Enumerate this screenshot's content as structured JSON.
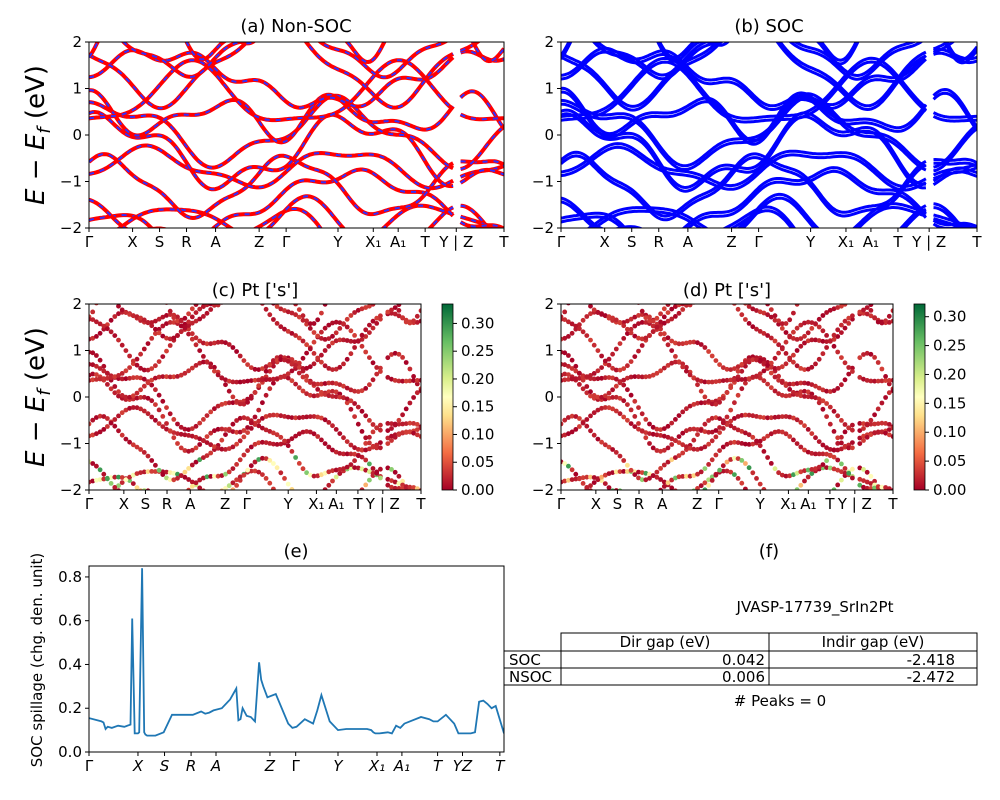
{
  "panels": {
    "a": {
      "title": "(a) Non-SOC",
      "ylabel": "E − E_f (eV)",
      "ylim": [
        -2,
        2
      ],
      "yticks": [
        "−2",
        "−1",
        "0",
        "1",
        "2"
      ]
    },
    "b": {
      "title": "(b) SOC",
      "ylim": [
        -2,
        2
      ],
      "yticks": [
        "−2",
        "−1",
        "0",
        "1",
        "2"
      ]
    },
    "c": {
      "title": "(c)  Pt ['s']",
      "ylabel": "E − E_f (eV)",
      "ylim": [
        -2,
        2
      ],
      "yticks": [
        "−2",
        "−1",
        "0",
        "1",
        "2"
      ]
    },
    "d": {
      "title": "(d) Pt ['s']",
      "ylim": [
        -2,
        2
      ],
      "yticks": [
        "−2",
        "−1",
        "0",
        "1",
        "2"
      ]
    },
    "e": {
      "title": "(e)",
      "ylabel": "SOC spillage (chg. den. unit)",
      "ylim": [
        0,
        0.85
      ],
      "yticks": [
        "0.0",
        "0.2",
        "0.4",
        "0.6",
        "0.8"
      ]
    },
    "f": {
      "title": "(f)"
    }
  },
  "kpath_labels": [
    "Γ",
    "X",
    "S",
    "R",
    "A",
    "Z",
    "Γ",
    "Y",
    "X₁",
    "A₁",
    "T",
    "Y | Z",
    "T"
  ],
  "kpath_positions": [
    0.0,
    0.105,
    0.17,
    0.235,
    0.305,
    0.41,
    0.475,
    0.6,
    0.685,
    0.745,
    0.81,
    0.885,
    1.0
  ],
  "kpath_labels_e": [
    "Γ",
    "X",
    "S",
    "R",
    "A",
    "Z",
    "Γ",
    "Y",
    "X₁",
    "A₁",
    "T",
    "YZ",
    "T"
  ],
  "kpath_positions_e": [
    0.0,
    0.118,
    0.182,
    0.246,
    0.306,
    0.436,
    0.498,
    0.6,
    0.694,
    0.754,
    0.84,
    0.9,
    0.99
  ],
  "colorbar_c": {
    "ticks": [
      "0.00",
      "0.05",
      "0.10",
      "0.15",
      "0.20",
      "0.25",
      "0.30"
    ],
    "max": 0.335,
    "colormap": "RdYlGn"
  },
  "colorbar_d": {
    "ticks": [
      "0.00",
      "0.05",
      "0.10",
      "0.15",
      "0.20",
      "0.25",
      "0.30"
    ],
    "max": 0.322,
    "colormap": "RdYlGn"
  },
  "colors": {
    "nonsoc_line": "#ff0000",
    "nonsoc_dash": "#3030ff",
    "soc_line": "#0000ff",
    "spillage_line": "#1f77b4"
  },
  "chart_data": {
    "type": "line",
    "x": [
      0.0,
      0.03,
      0.035,
      0.04,
      0.045,
      0.055,
      0.07,
      0.085,
      0.1,
      0.104,
      0.11,
      0.115,
      0.118,
      0.121,
      0.128,
      0.133,
      0.136,
      0.14,
      0.145,
      0.16,
      0.18,
      0.2,
      0.21,
      0.22,
      0.25,
      0.27,
      0.28,
      0.29,
      0.3,
      0.32,
      0.34,
      0.355,
      0.36,
      0.365,
      0.37,
      0.38,
      0.39,
      0.4,
      0.41,
      0.415,
      0.42,
      0.43,
      0.45,
      0.48,
      0.49,
      0.5,
      0.52,
      0.53,
      0.54,
      0.55,
      0.56,
      0.58,
      0.6,
      0.62,
      0.65,
      0.67,
      0.68,
      0.685,
      0.69,
      0.7,
      0.72,
      0.73,
      0.74,
      0.75,
      0.76,
      0.8,
      0.82,
      0.83,
      0.84,
      0.86,
      0.88,
      0.89,
      0.9,
      0.91,
      0.92,
      0.93,
      0.94,
      0.95,
      0.96,
      0.97,
      0.98,
      1.0
    ],
    "spillage": [
      0.155,
      0.14,
      0.135,
      0.105,
      0.115,
      0.11,
      0.12,
      0.115,
      0.125,
      0.61,
      0.085,
      0.085,
      0.085,
      0.09,
      0.84,
      0.09,
      0.08,
      0.075,
      0.075,
      0.075,
      0.09,
      0.17,
      0.17,
      0.17,
      0.17,
      0.185,
      0.175,
      0.18,
      0.19,
      0.2,
      0.24,
      0.29,
      0.145,
      0.15,
      0.2,
      0.165,
      0.16,
      0.14,
      0.41,
      0.33,
      0.3,
      0.25,
      0.265,
      0.13,
      0.11,
      0.115,
      0.15,
      0.14,
      0.13,
      0.19,
      0.26,
      0.14,
      0.1,
      0.105,
      0.105,
      0.105,
      0.1,
      0.09,
      0.085,
      0.085,
      0.09,
      0.085,
      0.12,
      0.11,
      0.13,
      0.16,
      0.15,
      0.14,
      0.14,
      0.17,
      0.13,
      0.085,
      0.085,
      0.085,
      0.085,
      0.09,
      0.23,
      0.235,
      0.22,
      0.2,
      0.21,
      0.085
    ],
    "xlabel": "",
    "ylabel": "SOC spillage (chg. den. unit)",
    "ylim": [
      0,
      0.85
    ]
  },
  "table": {
    "title": "JVASP-17739_SrIn2Pt",
    "headers": [
      "",
      "Dir gap (eV)",
      "Indir gap (eV)"
    ],
    "rows": [
      [
        "SOC",
        "0.042",
        "-2.418"
      ],
      [
        "NSOC",
        "0.006",
        "-2.472"
      ]
    ],
    "footer": "# Peaks = 0"
  }
}
